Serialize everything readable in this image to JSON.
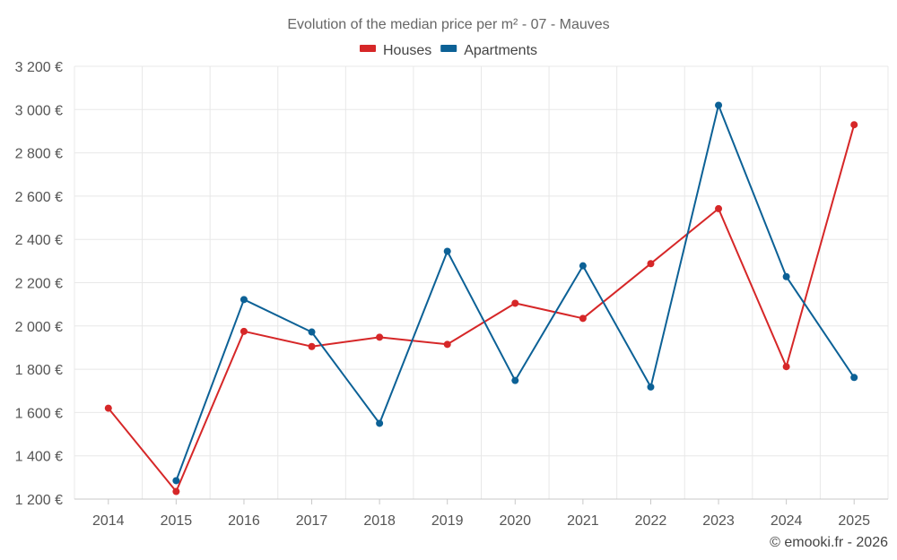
{
  "chart_data": {
    "type": "line",
    "title": "Evolution of the median price per m² - 07 - Mauves",
    "categories": [
      "2014",
      "2015",
      "2016",
      "2017",
      "2018",
      "2019",
      "2020",
      "2021",
      "2022",
      "2023",
      "2024",
      "2025"
    ],
    "series": [
      {
        "name": "Houses",
        "color": "#d62728",
        "values": [
          1620,
          1235,
          1975,
          1905,
          1948,
          1915,
          2105,
          2035,
          2288,
          2542,
          1812,
          2930
        ]
      },
      {
        "name": "Apartments",
        "color": "#0c6196",
        "values": [
          null,
          1285,
          2122,
          1972,
          1550,
          2345,
          1748,
          2278,
          1718,
          3020,
          2228,
          1762
        ]
      }
    ],
    "ylim": [
      1200,
      3200
    ],
    "yticks": [
      1200,
      1400,
      1600,
      1800,
      2000,
      2200,
      2400,
      2600,
      2800,
      3000,
      3200
    ],
    "ytick_labels": [
      "1 200 €",
      "1 400 €",
      "1 600 €",
      "1 800 €",
      "2 000 €",
      "2 200 €",
      "2 400 €",
      "2 600 €",
      "2 800 €",
      "3 000 €",
      "3 200 €"
    ],
    "xlabel": "",
    "ylabel": "",
    "grid": true,
    "legend_position": "top-center"
  },
  "credit": "© emooki.fr - 2026"
}
